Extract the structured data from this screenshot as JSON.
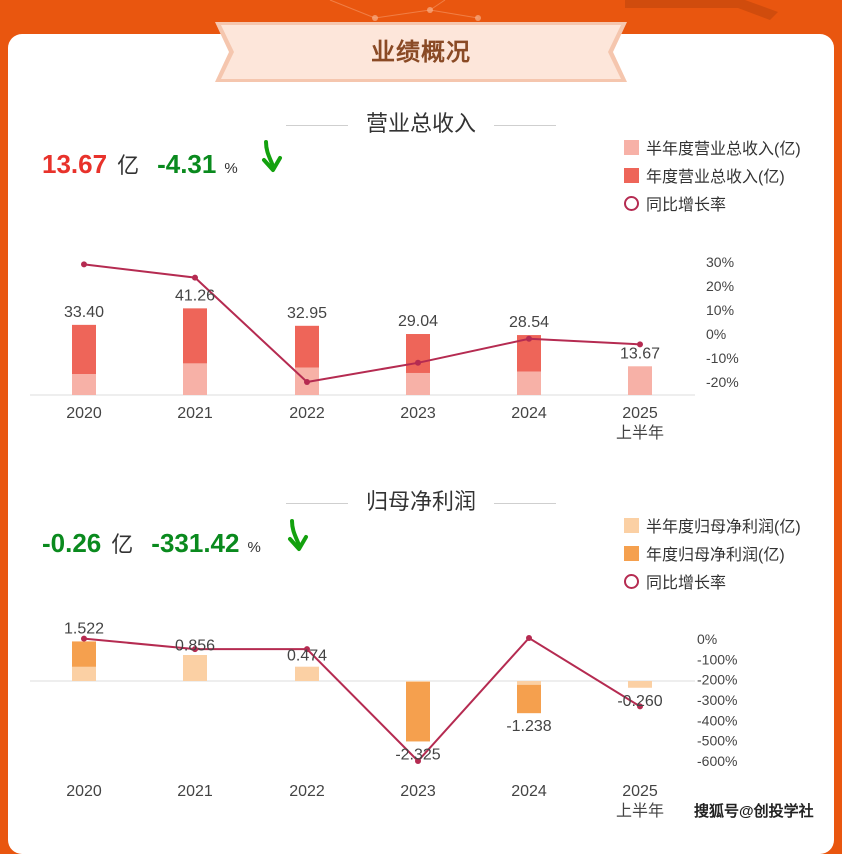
{
  "page": {
    "title": "业绩概况",
    "watermark": "搜狐号@创投学社",
    "colors": {
      "background": "#e9560f",
      "card": "#ffffff",
      "ribbon": "#fde6da",
      "title_text": "#8a4a25",
      "positive_red": "#e8322b",
      "negative_green": "#0a8a1e",
      "yoy_line": "#b52b51"
    }
  },
  "revenue": {
    "title": "营业总收入",
    "summary": {
      "value": "13.67",
      "unit": "亿",
      "change": "-4.31",
      "change_unit": "%",
      "arrow_icon": "down-arrow-icon"
    },
    "legend": [
      {
        "label": "半年度营业总收入(亿)",
        "color": "#f7b1a7",
        "kind": "box"
      },
      {
        "label": "年度营业总收入(亿)",
        "color": "#ee6559",
        "kind": "box"
      },
      {
        "label": "同比增长率",
        "color": "#b52b51",
        "kind": "ring"
      }
    ]
  },
  "profit": {
    "title": "归母净利润",
    "summary": {
      "value": "-0.26",
      "unit": "亿",
      "change": "-331.42",
      "change_unit": "%",
      "arrow_icon": "down-arrow-icon"
    },
    "legend": [
      {
        "label": "半年度归母净利润(亿)",
        "color": "#fbd0a4",
        "kind": "box"
      },
      {
        "label": "年度归母净利润(亿)",
        "color": "#f5a04e",
        "kind": "box"
      },
      {
        "label": "同比增长率",
        "color": "#b52b51",
        "kind": "ring"
      }
    ]
  },
  "chart_data": [
    {
      "type": "bar",
      "title": "营业总收入",
      "categories": [
        "2020",
        "2021",
        "2022",
        "2023",
        "2024",
        "2025\n上半年"
      ],
      "series": [
        {
          "name": "半年度营业总收入(亿)",
          "kind": "bar",
          "color": "#f7b1a7",
          "values": [
            10.0,
            15.1,
            13.1,
            10.5,
            11.2,
            13.67
          ]
        },
        {
          "name": "年度营业总收入(亿)",
          "kind": "bar",
          "color": "#ee6559",
          "values": [
            33.4,
            41.26,
            32.95,
            29.04,
            28.54,
            null
          ]
        },
        {
          "name": "同比增长率",
          "kind": "line",
          "axis": "right",
          "color": "#b52b51",
          "values": [
            29,
            23.5,
            -20,
            -12,
            -2,
            -4.31
          ]
        }
      ],
      "bar_labels": [
        "33.40",
        "41.26",
        "32.95",
        "29.04",
        "28.54",
        "13.67"
      ],
      "y_right_ticks": [
        "30%",
        "20%",
        "10%",
        "0%",
        "-10%",
        "-20%"
      ],
      "y_right_range": [
        -25,
        30
      ],
      "ylim": [
        0,
        46
      ]
    },
    {
      "type": "bar",
      "title": "归母净利润",
      "categories": [
        "2020",
        "2021",
        "2022",
        "2023",
        "2024",
        "2025\n上半年"
      ],
      "series": [
        {
          "name": "半年度归母净利润(亿)",
          "kind": "bar",
          "color": "#fbd0a4",
          "values": [
            0.55,
            1.0,
            0.55,
            0.0,
            -0.15,
            -0.26
          ]
        },
        {
          "name": "年度归母净利润(亿)",
          "kind": "bar",
          "color": "#f5a04e",
          "values": [
            1.522,
            0.856,
            0.474,
            -2.325,
            -1.238,
            null
          ]
        },
        {
          "name": "同比增长率",
          "kind": "line",
          "axis": "right",
          "color": "#b52b51",
          "values": [
            2,
            -50,
            -50,
            -600,
            5,
            -331.42
          ]
        }
      ],
      "bar_labels": [
        "1.522",
        "0.856",
        "0.474",
        "-2.325",
        "-1.238",
        "-0.260"
      ],
      "y_right_ticks": [
        "0%",
        "-100%",
        "-200%",
        "-300%",
        "-400%",
        "-500%",
        "-600%"
      ],
      "y_right_range": [
        -600,
        0
      ],
      "ylim": [
        -2.8,
        1.6
      ]
    }
  ]
}
